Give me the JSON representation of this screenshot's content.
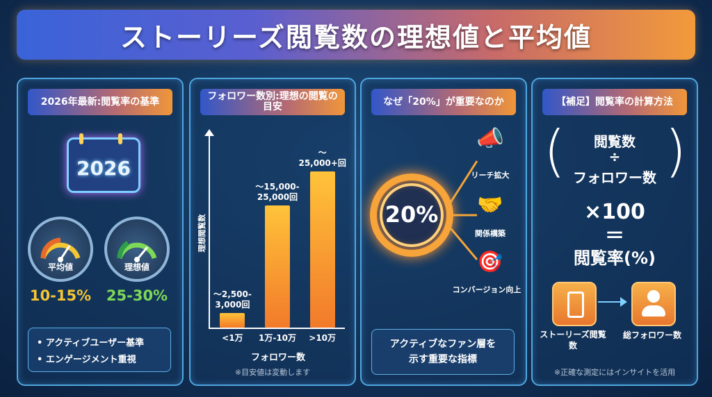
{
  "title": "ストーリーズ閲覧数の理想値と平均値",
  "panel1": {
    "header": "2026年最新:閲覧率の基準",
    "year": "2026",
    "gauge_avg_label": "平均値",
    "gauge_avg_value": "10-15%",
    "gauge_ideal_label": "理想値",
    "gauge_ideal_value": "25-30%",
    "bullets": [
      "アクティブユーザー基準",
      "エンゲージメント重視"
    ],
    "colors": {
      "avg": "#f4c634",
      "ideal": "#7ed957"
    }
  },
  "panel2": {
    "header": "フォロワー数別:理想の閲覧の目安",
    "note": "※目安値は変動します"
  },
  "chart_data": {
    "type": "bar",
    "categories": [
      "<1万",
      "1万-10万",
      ">10万"
    ],
    "value_labels": [
      "～2,500-3,000回",
      "～15,000-25,000回",
      "～25,000+回"
    ],
    "values": [
      3000,
      25000,
      32000
    ],
    "xlabel": "フォロワー数",
    "ylabel": "理想閲覧数",
    "ylim": [
      0,
      35000
    ]
  },
  "panel3": {
    "header": "なぜ「20%」が重要なのか",
    "center": "20%",
    "items": [
      "リーチ拡大",
      "関係構築",
      "コンバージョン向上"
    ],
    "summary": "アクティブなファン層を示す重要な指標"
  },
  "panel4": {
    "header": "【補足】閲覧率の計算方法",
    "numerator": "閲覧数",
    "divide": "÷",
    "denominator": "フォロワー数",
    "multiply": "×100",
    "equals": "＝",
    "result": "閲覧率(%)",
    "left_icon_label": "ストーリーズ閲覧数",
    "right_icon_label": "総フォロワー数",
    "note": "※正確な測定にはインサイトを活用"
  }
}
